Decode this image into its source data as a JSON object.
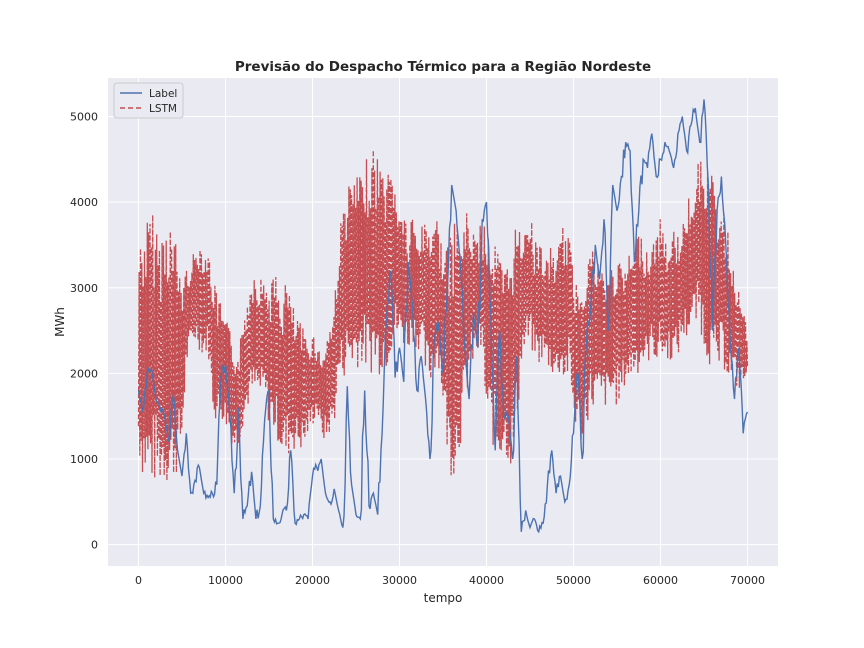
{
  "chart_data": {
    "type": "line",
    "title": "Previsão do Despacho Térmico para a Região Nordeste",
    "xlabel": "tempo",
    "ylabel": "MWh",
    "xlim": [
      -3500,
      73500
    ],
    "ylim": [
      -250,
      5450
    ],
    "xticks": [
      0,
      10000,
      20000,
      30000,
      40000,
      50000,
      60000,
      70000
    ],
    "yticks": [
      0,
      1000,
      2000,
      3000,
      4000,
      5000
    ],
    "grid": true,
    "legend_position": "upper-left",
    "series": [
      {
        "name": "Label",
        "color": "#4c72b0",
        "style": "solid",
        "x": [
          0,
          500,
          1000,
          1500,
          2000,
          2500,
          3000,
          3500,
          4000,
          4500,
          5000,
          5500,
          6000,
          6500,
          7000,
          7500,
          8000,
          8500,
          9000,
          9500,
          10000,
          10500,
          11000,
          11500,
          12000,
          12500,
          13000,
          13500,
          14000,
          14500,
          15000,
          15500,
          16000,
          16500,
          17000,
          17500,
          18000,
          18500,
          19000,
          19500,
          20000,
          20500,
          21000,
          21500,
          22000,
          22500,
          23000,
          23500,
          24000,
          24500,
          25000,
          25500,
          26000,
          26500,
          27000,
          27500,
          28000,
          28500,
          29000,
          29500,
          30000,
          30500,
          31000,
          31500,
          32000,
          32500,
          33000,
          33500,
          34000,
          34500,
          35000,
          35500,
          36000,
          36500,
          37000,
          37500,
          38000,
          38500,
          39000,
          39500,
          40000,
          40500,
          41000,
          41500,
          42000,
          42500,
          43000,
          43500,
          44000,
          44500,
          45000,
          45500,
          46000,
          46500,
          47000,
          47500,
          48000,
          48500,
          49000,
          49500,
          50000,
          50500,
          51000,
          51500,
          52000,
          52500,
          53000,
          53500,
          54000,
          54500,
          55000,
          55500,
          56000,
          56500,
          57000,
          57500,
          58000,
          58500,
          59000,
          59500,
          60000,
          60500,
          61000,
          61500,
          62000,
          62500,
          63000,
          63500,
          64000,
          64500,
          65000,
          65500,
          66000,
          66500,
          67000,
          67500,
          68000,
          68500,
          69000,
          69500,
          70000
        ],
        "y": [
          1800,
          1550,
          2000,
          2050,
          1700,
          1600,
          1500,
          1200,
          1750,
          1100,
          800,
          1300,
          600,
          750,
          900,
          600,
          550,
          600,
          700,
          1950,
          2100,
          1500,
          600,
          1600,
          300,
          450,
          850,
          300,
          450,
          1450,
          1800,
          300,
          250,
          350,
          400,
          1100,
          250,
          300,
          350,
          300,
          800,
          900,
          1000,
          600,
          500,
          650,
          400,
          200,
          1850,
          700,
          350,
          300,
          1800,
          450,
          600,
          350,
          1300,
          2600,
          3200,
          1950,
          2300,
          1900,
          3300,
          2800,
          1800,
          2200,
          1700,
          1000,
          2400,
          2600,
          2000,
          3000,
          4200,
          3900,
          3300,
          2300,
          1700,
          2700,
          2300,
          3800,
          4000,
          2700,
          1100,
          2500,
          1500,
          1500,
          1000,
          2200,
          150,
          400,
          200,
          300,
          150,
          250,
          700,
          1100,
          600,
          800,
          500,
          700,
          1300,
          2000,
          1000,
          2400,
          2800,
          3500,
          3100,
          3800,
          2500,
          4200,
          3900,
          4300,
          4700,
          4600,
          3300,
          3900,
          4500,
          4400,
          4800,
          4300,
          4500,
          4700,
          4600,
          4400,
          4800,
          5000,
          4600,
          4900,
          5100,
          4700,
          5200,
          4200,
          2500,
          3900,
          4300,
          3500,
          2400,
          1700,
          2300,
          1300,
          1550
        ],
        "values_approximate": true
      },
      {
        "name": "LSTM",
        "color": "#c44e52",
        "style": "dashed",
        "x": [
          0,
          500,
          1000,
          1500,
          2000,
          2500,
          3000,
          3500,
          4000,
          4500,
          5000,
          5500,
          6000,
          6500,
          7000,
          7500,
          8000,
          8500,
          9000,
          9500,
          10000,
          10500,
          11000,
          11500,
          12000,
          12500,
          13000,
          13500,
          14000,
          14500,
          15000,
          15500,
          16000,
          16500,
          17000,
          17500,
          18000,
          18500,
          19000,
          19500,
          20000,
          20500,
          21000,
          21500,
          22000,
          22500,
          23000,
          23500,
          24000,
          24500,
          25000,
          25500,
          26000,
          26500,
          27000,
          27500,
          28000,
          28500,
          29000,
          29500,
          30000,
          30500,
          31000,
          31500,
          32000,
          32500,
          33000,
          33500,
          34000,
          34500,
          35000,
          35500,
          36000,
          36500,
          37000,
          37500,
          38000,
          38500,
          39000,
          39500,
          40000,
          40500,
          41000,
          41500,
          42000,
          42500,
          43000,
          43500,
          44000,
          44500,
          45000,
          45500,
          46000,
          46500,
          47000,
          47500,
          48000,
          48500,
          49000,
          49500,
          50000,
          50500,
          51000,
          51500,
          52000,
          52500,
          53000,
          53500,
          54000,
          54500,
          55000,
          55500,
          56000,
          56500,
          57000,
          57500,
          58000,
          58500,
          59000,
          59500,
          60000,
          60500,
          61000,
          61500,
          62000,
          62500,
          63000,
          63500,
          64000,
          64500,
          65000,
          65500,
          66000,
          66500,
          67000,
          67500,
          68000,
          68500,
          69000,
          69500,
          70000
        ],
        "y_low": [
          900,
          600,
          500,
          500,
          500,
          500,
          500,
          500,
          550,
          700,
          1000,
          2000,
          2200,
          2300,
          2200,
          2100,
          2200,
          1500,
          1300,
          1400,
          1300,
          1200,
          1000,
          1100,
          1300,
          1500,
          1600,
          1600,
          1600,
          1600,
          1300,
          1200,
          1100,
          900,
          800,
          1000,
          1000,
          1000,
          1000,
          1200,
          1300,
          1500,
          1200,
          1100,
          1200,
          1300,
          1800,
          1800,
          1900,
          1900,
          1900,
          2000,
          1900,
          1800,
          1900,
          1800,
          1900,
          1900,
          2100,
          2200,
          2300,
          2200,
          2200,
          2300,
          2200,
          2200,
          1800,
          1700,
          1900,
          2000,
          1500,
          900,
          600,
          700,
          1000,
          1400,
          1800,
          2000,
          2100,
          2100,
          1200,
          1100,
          900,
          800,
          1000,
          800,
          700,
          1200,
          2000,
          2100,
          2200,
          2100,
          2000,
          2100,
          2000,
          1900,
          1800,
          1900,
          1700,
          1900,
          1300,
          1200,
          1000,
          1300,
          1400,
          1500,
          1500,
          1500,
          1500,
          1600,
          1500,
          1600,
          1800,
          1800,
          1900,
          1900,
          2000,
          2000,
          2200,
          2000,
          2100,
          2000,
          2100,
          2000,
          2100,
          2300,
          2300,
          2400,
          2400,
          2500,
          2100,
          2000,
          1900,
          1800,
          2000,
          1900,
          1800,
          1800,
          1700,
          1800,
          1900
        ],
        "y_high": [
          3700,
          3900,
          4000,
          4100,
          4000,
          3800,
          4000,
          4100,
          3900,
          3600,
          3300,
          3300,
          3400,
          3500,
          3650,
          3600,
          3500,
          3300,
          3000,
          2900,
          2700,
          2600,
          2400,
          2300,
          2700,
          3000,
          3300,
          3400,
          3200,
          3300,
          3100,
          3300,
          3200,
          3000,
          3350,
          3000,
          2800,
          2700,
          2600,
          2500,
          2600,
          2400,
          2300,
          2500,
          2700,
          2900,
          3700,
          4100,
          4300,
          4400,
          4500,
          4400,
          4600,
          4700,
          4800,
          4750,
          4600,
          4500,
          4600,
          4500,
          3900,
          4200,
          3600,
          4000,
          3700,
          3800,
          4000,
          3900,
          4100,
          3800,
          3700,
          3600,
          3800,
          4000,
          3900,
          4000,
          4000,
          3800,
          3700,
          3900,
          4000,
          3800,
          3700,
          3600,
          3300,
          3500,
          3800,
          4000,
          3700,
          4100,
          4000,
          3600,
          3700,
          3500,
          3400,
          3600,
          3500,
          3700,
          3900,
          3700,
          3300,
          3200,
          3400,
          3500,
          3700,
          3500,
          3400,
          3300,
          3300,
          3400,
          3500,
          3300,
          3400,
          3500,
          3600,
          3800,
          3700,
          3500,
          3600,
          3800,
          3900,
          3700,
          3600,
          3800,
          3700,
          3900,
          4000,
          4300,
          4500,
          4600,
          4700,
          4600,
          4400,
          4200,
          4100,
          3900,
          3600,
          3300,
          3100,
          2800,
          2500
        ],
        "values_approximate": true
      }
    ]
  }
}
